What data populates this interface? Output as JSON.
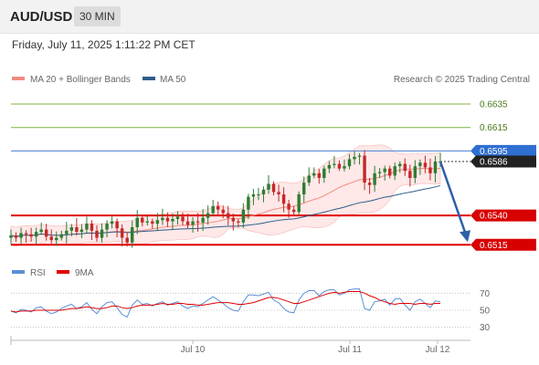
{
  "header": {
    "pair": "AUD/USD",
    "timeframe": "30 MIN",
    "datetime": "Friday, July 11, 2025 1:11:22 PM CET"
  },
  "legend": {
    "ma20": "MA 20 + Bollinger Bands",
    "ma50": "MA 50",
    "credit": "Research © 2025 Trading Central"
  },
  "rsi_legend": {
    "rsi": "RSI",
    "ma9": "9MA"
  },
  "colors": {
    "ma20": "#f28b82",
    "ma50": "#2e5c8a",
    "up": "#2e7d32",
    "down": "#c62828",
    "support": "#e00000",
    "resistance": "#7cb342",
    "pivot": "#5b8fd6",
    "band": "#fde0e0",
    "arrow": "#2e5fa8",
    "rsi": "#5b8fd6",
    "rsi_ma": "#e00000"
  },
  "levels": [
    {
      "value": 0.6635,
      "label": "0.6635",
      "type": "resistance"
    },
    {
      "value": 0.6615,
      "label": "0.6615",
      "type": "resistance"
    },
    {
      "value": 0.6595,
      "label": "0.6595",
      "type": "pivot"
    },
    {
      "value": 0.6586,
      "label": "0.6586",
      "type": "last"
    },
    {
      "value": 0.654,
      "label": "0.6540",
      "type": "support"
    },
    {
      "value": 0.6515,
      "label": "0.6515",
      "type": "support"
    }
  ],
  "chart_data": [
    {
      "type": "candlestick",
      "title": "",
      "xlabel": "",
      "ylabel": "",
      "x_ticks": [
        "Jul 10",
        "Jul 11",
        "Jul 12"
      ],
      "ylim": [
        0.6502,
        0.6649
      ],
      "closes": [
        0.6523,
        0.6521,
        0.6525,
        0.6524,
        0.6522,
        0.6526,
        0.6528,
        0.6522,
        0.6519,
        0.6521,
        0.6524,
        0.6527,
        0.653,
        0.6526,
        0.6528,
        0.6533,
        0.6527,
        0.6521,
        0.6528,
        0.6533,
        0.6535,
        0.6529,
        0.6521,
        0.6517,
        0.653,
        0.6538,
        0.6534,
        0.6535,
        0.6533,
        0.6536,
        0.6538,
        0.6535,
        0.6537,
        0.6539,
        0.6535,
        0.6532,
        0.6535,
        0.6534,
        0.6538,
        0.6542,
        0.6548,
        0.6545,
        0.6542,
        0.6538,
        0.6535,
        0.6534,
        0.6545,
        0.6556,
        0.6558,
        0.6558,
        0.6562,
        0.6567,
        0.656,
        0.6558,
        0.655,
        0.6545,
        0.6543,
        0.6558,
        0.6568,
        0.6574,
        0.6576,
        0.6572,
        0.658,
        0.6583,
        0.6584,
        0.658,
        0.6582,
        0.6588,
        0.659,
        0.6591,
        0.6568,
        0.6566,
        0.6576,
        0.6577,
        0.658,
        0.6574,
        0.6582,
        0.6584,
        0.6578,
        0.6572,
        0.6582,
        0.6585,
        0.6581,
        0.6576,
        0.6586,
        0.6586
      ]
    },
    {
      "type": "line",
      "title": "",
      "xlabel": "",
      "ylabel": "",
      "ylim": [
        20,
        80
      ],
      "yticks": [
        70,
        50,
        30
      ],
      "series": [
        {
          "name": "RSI",
          "values": [
            49,
            47,
            51,
            50,
            48,
            53,
            54,
            49,
            46,
            48,
            52,
            55,
            57,
            52,
            54,
            59,
            51,
            46,
            54,
            59,
            60,
            53,
            45,
            42,
            56,
            62,
            57,
            58,
            55,
            58,
            60,
            56,
            58,
            60,
            55,
            52,
            55,
            54,
            58,
            62,
            66,
            62,
            58,
            53,
            50,
            49,
            60,
            68,
            68,
            67,
            69,
            71,
            62,
            59,
            52,
            48,
            47,
            62,
            70,
            73,
            73,
            67,
            72,
            74,
            74,
            68,
            70,
            74,
            75,
            75,
            52,
            50,
            60,
            61,
            63,
            56,
            63,
            64,
            56,
            50,
            60,
            63,
            58,
            53,
            61,
            60
          ]
        },
        {
          "name": "9MA",
          "values": [
            49,
            48,
            49,
            49,
            49,
            50,
            50,
            50,
            50,
            50,
            50,
            51,
            52,
            52,
            53,
            54,
            53,
            52,
            52,
            53,
            55,
            55,
            53,
            52,
            53,
            55,
            56,
            56,
            56,
            57,
            58,
            57,
            57,
            58,
            58,
            57,
            57,
            56,
            56,
            57,
            58,
            59,
            59,
            59,
            58,
            57,
            57,
            58,
            59,
            61,
            63,
            65,
            65,
            64,
            62,
            60,
            58,
            58,
            60,
            62,
            64,
            66,
            68,
            70,
            71,
            70,
            71,
            72,
            72,
            72,
            70,
            67,
            65,
            62,
            60,
            58,
            57,
            58,
            58,
            58,
            57,
            58,
            58,
            57,
            58,
            58
          ]
        }
      ]
    }
  ]
}
